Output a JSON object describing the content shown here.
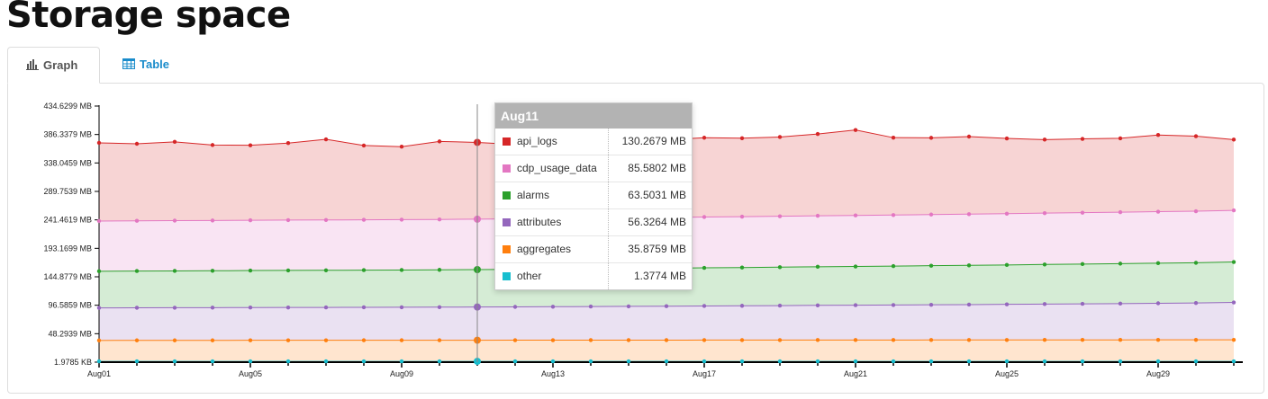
{
  "page": {
    "title": "Storage space"
  },
  "tabs": [
    {
      "label": "Graph",
      "icon": "bar-chart-icon"
    },
    {
      "label": "Table",
      "icon": "table-icon"
    }
  ],
  "tooltip": {
    "title": "Aug11",
    "rows": [
      {
        "name": "api_logs",
        "value": "130.2679 MB",
        "color": "#d62728"
      },
      {
        "name": "cdp_usage_data",
        "value": "85.5802 MB",
        "color": "#e377c2"
      },
      {
        "name": "alarms",
        "value": "63.5031 MB",
        "color": "#2ca02c"
      },
      {
        "name": "attributes",
        "value": "56.3264 MB",
        "color": "#9467bd"
      },
      {
        "name": "aggregates",
        "value": "35.8759 MB",
        "color": "#ff7f0e"
      },
      {
        "name": "other",
        "value": "1.3774 MB",
        "color": "#17becf"
      }
    ]
  },
  "chart_data": {
    "type": "area",
    "stacked": true,
    "x": [
      "Aug01",
      "Aug02",
      "Aug03",
      "Aug04",
      "Aug05",
      "Aug06",
      "Aug07",
      "Aug08",
      "Aug09",
      "Aug10",
      "Aug11",
      "Aug12",
      "Aug13",
      "Aug14",
      "Aug15",
      "Aug16",
      "Aug17",
      "Aug18",
      "Aug19",
      "Aug20",
      "Aug21",
      "Aug22",
      "Aug23",
      "Aug24",
      "Aug25",
      "Aug26",
      "Aug27",
      "Aug28",
      "Aug29",
      "Aug30",
      "Aug31"
    ],
    "x_tick_labels": [
      "Aug01",
      "Aug05",
      "Aug09",
      "Aug13",
      "Aug17",
      "Aug21",
      "Aug25",
      "Aug29"
    ],
    "y_tick_labels": [
      "1.9785 KB",
      "48.2939 MB",
      "96.5859 MB",
      "144.8779 MB",
      "193.1699 MB",
      "241.4619 MB",
      "289.7539 MB",
      "338.0459 MB",
      "386.3379 MB",
      "434.6299 MB"
    ],
    "y_unit": "MB",
    "ylim": [
      0,
      434.63
    ],
    "highlight_x": "Aug11",
    "series": [
      {
        "name": "other",
        "color": "#17becf",
        "values": [
          1.38,
          1.38,
          1.38,
          1.38,
          1.38,
          1.38,
          1.38,
          1.38,
          1.38,
          1.38,
          1.38,
          1.38,
          1.38,
          1.38,
          1.38,
          1.38,
          1.38,
          1.38,
          1.38,
          1.38,
          1.38,
          1.38,
          1.38,
          1.38,
          1.38,
          1.38,
          1.38,
          1.38,
          1.38,
          1.38,
          1.38
        ]
      },
      {
        "name": "aggregates",
        "color": "#ff7f0e",
        "values": [
          35.5,
          35.6,
          35.6,
          35.6,
          35.7,
          35.7,
          35.7,
          35.8,
          35.8,
          35.8,
          35.88,
          35.9,
          35.9,
          36.0,
          36.0,
          36.0,
          36.1,
          36.1,
          36.1,
          36.2,
          36.2,
          36.2,
          36.3,
          36.3,
          36.3,
          36.4,
          36.4,
          36.4,
          36.5,
          36.5,
          36.5
        ]
      },
      {
        "name": "attributes",
        "color": "#9467bd",
        "values": [
          55.2,
          55.3,
          55.4,
          55.5,
          55.6,
          55.7,
          55.8,
          55.9,
          56.0,
          56.2,
          56.33,
          56.5,
          56.8,
          57.0,
          57.3,
          57.6,
          57.9,
          58.2,
          58.5,
          58.8,
          59.1,
          59.4,
          59.7,
          60.0,
          60.4,
          60.8,
          61.2,
          61.6,
          62.0,
          62.5,
          63.5
        ]
      },
      {
        "name": "alarms",
        "color": "#2ca02c",
        "values": [
          62.2,
          62.4,
          62.5,
          62.6,
          62.8,
          62.9,
          63.0,
          63.1,
          63.2,
          63.3,
          63.5,
          63.7,
          63.9,
          64.1,
          64.3,
          64.5,
          64.7,
          64.9,
          65.2,
          65.5,
          65.7,
          66.0,
          66.3,
          66.6,
          66.9,
          67.2,
          67.5,
          67.8,
          68.1,
          68.3,
          68.6
        ]
      },
      {
        "name": "cdp_usage_data",
        "color": "#e377c2",
        "values": [
          85.2,
          85.2,
          85.3,
          85.3,
          85.3,
          85.4,
          85.4,
          85.4,
          85.5,
          85.5,
          85.58,
          85.7,
          85.8,
          85.9,
          86.0,
          86.1,
          86.2,
          86.3,
          86.4,
          86.5,
          86.6,
          86.7,
          86.8,
          86.9,
          87.0,
          87.1,
          87.2,
          87.3,
          87.4,
          87.5,
          87.6
        ]
      },
      {
        "name": "api_logs",
        "color": "#d62728",
        "values": [
          132.7,
          130.7,
          133.7,
          128.1,
          127.3,
          130.7,
          136.9,
          126.1,
          123.8,
          132.4,
          130.27,
          126.3,
          135.8,
          126.5,
          131.2,
          131.5,
          134.6,
          133.2,
          134.5,
          138.8,
          145.0,
          131.3,
          130.2,
          131.6,
          127.7,
          124.8,
          125.2,
          125.4,
          130.1,
          127.3,
          120.1
        ]
      }
    ]
  }
}
